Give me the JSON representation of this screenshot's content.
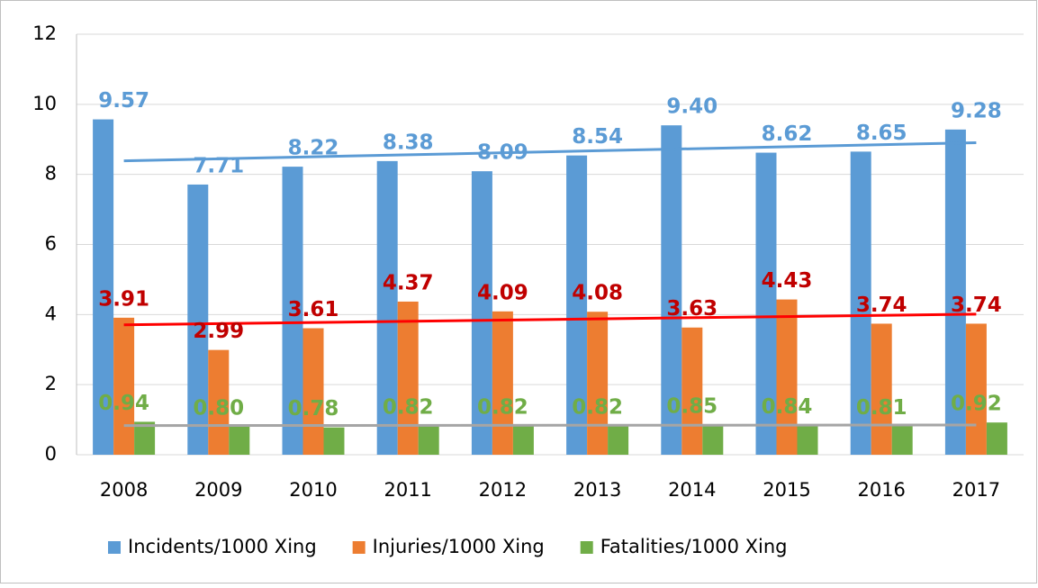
{
  "chart_data": {
    "type": "bar",
    "categories": [
      "2008",
      "2009",
      "2010",
      "2011",
      "2012",
      "2013",
      "2014",
      "2015",
      "2016",
      "2017"
    ],
    "series": [
      {
        "name": "Incidents/1000 Xing",
        "color": "#5b9bd5",
        "label_color": "#5b9bd5",
        "trendline": true,
        "trend_color": "#5b9bd5",
        "values": [
          9.57,
          7.71,
          8.22,
          8.38,
          8.09,
          8.54,
          9.4,
          8.62,
          8.65,
          9.28
        ],
        "value_labels": [
          "9.57",
          "7.71",
          "8.22",
          "8.38",
          "8.09",
          "8.54",
          "9.40",
          "8.62",
          "8.65",
          "9.28"
        ]
      },
      {
        "name": "Injuries/1000 Xing",
        "color": "#ed7d31",
        "label_color": "#c00000",
        "trendline": true,
        "trend_color": "#ff0000",
        "values": [
          3.91,
          2.99,
          3.61,
          4.37,
          4.09,
          4.08,
          3.63,
          4.43,
          3.74,
          3.74
        ],
        "value_labels": [
          "3.91",
          "2.99",
          "3.61",
          "4.37",
          "4.09",
          "4.08",
          "3.63",
          "4.43",
          "3.74",
          "3.74"
        ]
      },
      {
        "name": "Fatalities/1000 Xing",
        "color": "#70ad47",
        "label_color": "#70ad47",
        "trendline": true,
        "trend_color": "#a5a5a5",
        "values": [
          0.94,
          0.8,
          0.78,
          0.82,
          0.82,
          0.82,
          0.85,
          0.84,
          0.81,
          0.92
        ],
        "value_labels": [
          "0.94",
          "0.80",
          "0.78",
          "0.82",
          "0.82",
          "0.82",
          "0.85",
          "0.84",
          "0.81",
          "0.92"
        ]
      }
    ],
    "ylim": [
      0,
      12
    ],
    "yticks": [
      0,
      2,
      4,
      6,
      8,
      10,
      12
    ],
    "grid": true,
    "legend": "bottom"
  }
}
